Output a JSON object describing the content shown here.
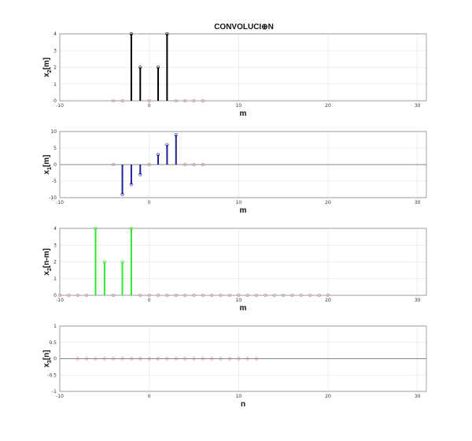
{
  "title": "CONVOLUCI⊕N",
  "colors": {
    "black": "#000000",
    "blue": "#1f1f9a",
    "green": "#2ee82e",
    "marker": "#c08080",
    "axis": "#888888",
    "grid": "#e6e6e6",
    "zero": "#666666"
  },
  "chart_data": [
    {
      "type": "stem",
      "ylabel_main": "x",
      "ylabel_sub": "2",
      "ylabel_rest": "[m]",
      "xlabel": "m",
      "xlim": [
        -10,
        31
      ],
      "ylim": [
        0,
        4
      ],
      "xticks": [
        -10,
        0,
        10,
        20,
        30
      ],
      "yticks": [
        0,
        1,
        2,
        3,
        4
      ],
      "color": "#000000",
      "n": [
        -4,
        -3,
        -2,
        -1,
        0,
        1,
        2,
        3,
        4,
        5,
        6
      ],
      "values": [
        0,
        0,
        4,
        2,
        0,
        2,
        4,
        0,
        0,
        0,
        0
      ]
    },
    {
      "type": "stem",
      "ylabel_main": "x",
      "ylabel_sub": "1",
      "ylabel_rest": "[m]",
      "xlabel": "m",
      "xlim": [
        -10,
        31
      ],
      "ylim": [
        -10,
        10
      ],
      "xticks": [
        -10,
        0,
        10,
        20,
        30
      ],
      "yticks": [
        -10,
        -5,
        0,
        5,
        10
      ],
      "color": "#1f1f9a",
      "n": [
        -4,
        -3,
        -2,
        -1,
        0,
        1,
        2,
        3,
        4,
        5,
        6
      ],
      "values": [
        0,
        -9,
        -6,
        -3,
        0,
        3,
        6,
        9,
        0,
        0,
        0
      ]
    },
    {
      "type": "stem",
      "ylabel_main": "x",
      "ylabel_sub": "2",
      "ylabel_rest": "[n-m]",
      "xlabel": "m",
      "xlim": [
        -10,
        31
      ],
      "ylim": [
        0,
        4
      ],
      "xticks": [
        -10,
        0,
        10,
        20,
        30
      ],
      "yticks": [
        0,
        1,
        2,
        3,
        4
      ],
      "color": "#2ee82e",
      "n": [
        -10,
        -9,
        -8,
        -7,
        -6,
        -5,
        -4,
        -3,
        -2,
        -1,
        0,
        1,
        2,
        3,
        4,
        5,
        6,
        7,
        8,
        9,
        10,
        11,
        12,
        13,
        14,
        15,
        16,
        17,
        18,
        19,
        20
      ],
      "values": [
        0,
        0,
        0,
        0,
        4,
        2,
        0,
        2,
        4,
        0,
        0,
        0,
        0,
        0,
        0,
        0,
        0,
        0,
        0,
        0,
        0,
        0,
        0,
        0,
        0,
        0,
        0,
        0,
        0,
        0,
        0
      ]
    },
    {
      "type": "stem",
      "ylabel_main": "x",
      "ylabel_sub": "3",
      "ylabel_rest": "[n]",
      "xlabel": "n",
      "xlim": [
        -10,
        31
      ],
      "ylim": [
        -1,
        1
      ],
      "xticks": [
        -10,
        0,
        10,
        20,
        30
      ],
      "yticks": [
        -1,
        -0.5,
        0,
        0.5,
        1
      ],
      "color": "#c08080",
      "n": [
        -8,
        -7,
        -6,
        -5,
        -4,
        -3,
        -2,
        -1,
        0,
        1,
        2,
        3,
        4,
        5,
        6,
        7,
        8,
        9,
        10,
        11,
        12
      ],
      "values": [
        0,
        0,
        0,
        0,
        0,
        0,
        0,
        0,
        0,
        0,
        0,
        0,
        0,
        0,
        0,
        0,
        0,
        0,
        0,
        0,
        0
      ]
    }
  ]
}
